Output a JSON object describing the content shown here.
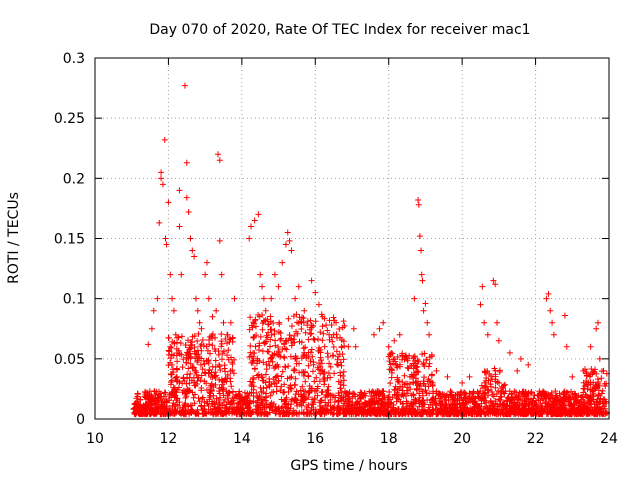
{
  "chart_data": {
    "type": "scatter",
    "title": "Day 070 of 2020, Rate Of TEC Index for receiver mac1",
    "xlabel": "GPS time / hours",
    "ylabel": "ROTI / TECUs",
    "xlim": [
      10,
      24
    ],
    "ylim": [
      0,
      0.3
    ],
    "grid": true,
    "marker": "+",
    "marker_color": "#ff0000",
    "xticks": [
      "10",
      "12",
      "14",
      "16",
      "18",
      "20",
      "22",
      "24"
    ],
    "yticks": [
      "0",
      "0.05",
      "0.1",
      "0.15",
      "0.2",
      "0.25",
      "0.3"
    ],
    "xtick_values": [
      10,
      12,
      14,
      16,
      18,
      20,
      22,
      24
    ],
    "ytick_values": [
      0,
      0.05,
      0.1,
      0.15,
      0.2,
      0.25,
      0.3
    ],
    "points": [
      [
        11.45,
        0.062
      ],
      [
        11.55,
        0.075
      ],
      [
        11.6,
        0.09
      ],
      [
        11.7,
        0.1
      ],
      [
        11.75,
        0.163
      ],
      [
        11.8,
        0.2
      ],
      [
        11.8,
        0.205
      ],
      [
        11.85,
        0.195
      ],
      [
        11.9,
        0.232
      ],
      [
        11.92,
        0.15
      ],
      [
        11.95,
        0.145
      ],
      [
        12.0,
        0.18
      ],
      [
        12.05,
        0.12
      ],
      [
        12.1,
        0.1
      ],
      [
        12.15,
        0.09
      ],
      [
        12.2,
        0.07
      ],
      [
        12.3,
        0.19
      ],
      [
        12.3,
        0.16
      ],
      [
        12.35,
        0.12
      ],
      [
        12.45,
        0.277
      ],
      [
        12.5,
        0.213
      ],
      [
        12.5,
        0.184
      ],
      [
        12.55,
        0.172
      ],
      [
        12.6,
        0.15
      ],
      [
        12.65,
        0.14
      ],
      [
        12.7,
        0.135
      ],
      [
        12.75,
        0.1
      ],
      [
        12.8,
        0.09
      ],
      [
        12.85,
        0.08
      ],
      [
        12.9,
        0.075
      ],
      [
        13.0,
        0.12
      ],
      [
        13.05,
        0.13
      ],
      [
        13.1,
        0.1
      ],
      [
        13.2,
        0.085
      ],
      [
        13.3,
        0.09
      ],
      [
        13.35,
        0.22
      ],
      [
        13.4,
        0.215
      ],
      [
        13.4,
        0.148
      ],
      [
        13.45,
        0.12
      ],
      [
        13.5,
        0.08
      ],
      [
        13.6,
        0.07
      ],
      [
        13.7,
        0.08
      ],
      [
        13.8,
        0.1
      ],
      [
        14.2,
        0.15
      ],
      [
        14.25,
        0.16
      ],
      [
        14.35,
        0.165
      ],
      [
        14.45,
        0.17
      ],
      [
        14.5,
        0.12
      ],
      [
        14.55,
        0.11
      ],
      [
        14.6,
        0.1
      ],
      [
        14.65,
        0.09
      ],
      [
        14.8,
        0.1
      ],
      [
        14.9,
        0.12
      ],
      [
        15.0,
        0.11
      ],
      [
        15.1,
        0.13
      ],
      [
        15.2,
        0.145
      ],
      [
        15.25,
        0.155
      ],
      [
        15.3,
        0.148
      ],
      [
        15.35,
        0.14
      ],
      [
        15.45,
        0.1
      ],
      [
        15.55,
        0.11
      ],
      [
        15.7,
        0.09
      ],
      [
        15.9,
        0.115
      ],
      [
        16.0,
        0.105
      ],
      [
        16.1,
        0.095
      ],
      [
        16.2,
        0.085
      ],
      [
        16.5,
        0.07
      ],
      [
        16.75,
        0.076
      ],
      [
        16.9,
        0.06
      ],
      [
        17.05,
        0.075
      ],
      [
        17.1,
        0.06
      ],
      [
        17.6,
        0.07
      ],
      [
        17.75,
        0.075
      ],
      [
        17.85,
        0.08
      ],
      [
        18.0,
        0.06
      ],
      [
        18.15,
        0.065
      ],
      [
        18.3,
        0.07
      ],
      [
        18.5,
        0.05
      ],
      [
        18.7,
        0.1
      ],
      [
        18.8,
        0.182
      ],
      [
        18.82,
        0.178
      ],
      [
        18.85,
        0.152
      ],
      [
        18.88,
        0.14
      ],
      [
        18.9,
        0.12
      ],
      [
        18.92,
        0.115
      ],
      [
        18.95,
        0.09
      ],
      [
        19.0,
        0.096
      ],
      [
        19.05,
        0.08
      ],
      [
        19.1,
        0.07
      ],
      [
        19.3,
        0.04
      ],
      [
        19.6,
        0.035
      ],
      [
        20.0,
        0.03
      ],
      [
        20.2,
        0.035
      ],
      [
        20.5,
        0.095
      ],
      [
        20.55,
        0.11
      ],
      [
        20.6,
        0.08
      ],
      [
        20.7,
        0.07
      ],
      [
        20.85,
        0.115
      ],
      [
        20.9,
        0.112
      ],
      [
        20.95,
        0.08
      ],
      [
        21.0,
        0.065
      ],
      [
        21.3,
        0.055
      ],
      [
        21.5,
        0.04
      ],
      [
        21.6,
        0.05
      ],
      [
        21.8,
        0.045
      ],
      [
        22.3,
        0.1
      ],
      [
        22.35,
        0.104
      ],
      [
        22.4,
        0.09
      ],
      [
        22.45,
        0.08
      ],
      [
        22.5,
        0.07
      ],
      [
        22.8,
        0.086
      ],
      [
        22.85,
        0.06
      ],
      [
        23.0,
        0.035
      ],
      [
        23.3,
        0.04
      ],
      [
        23.5,
        0.06
      ],
      [
        23.65,
        0.075
      ],
      [
        23.7,
        0.08
      ],
      [
        23.75,
        0.05
      ],
      [
        23.85,
        0.04
      ]
    ]
  }
}
